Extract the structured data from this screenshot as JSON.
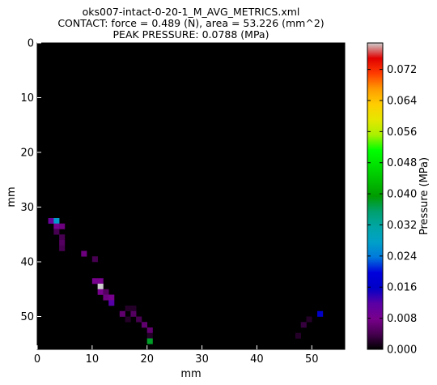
{
  "chart_data": {
    "type": "heatmap",
    "title_lines": [
      "oks007-intact-0-20-1_M_AVG_METRICS.xml",
      "CONTACT: force = 0.489 (N), area = 53.226 (mm^2)",
      "PEAK PRESSURE: 0.0788 (MPa)"
    ],
    "xlabel": "mm",
    "ylabel": "mm",
    "colorbar_label": "Pressure (MPa)",
    "xlim": [
      0,
      56
    ],
    "ylim": [
      56,
      0
    ],
    "xticks": [
      0,
      10,
      20,
      30,
      40,
      50
    ],
    "yticks": [
      0,
      10,
      20,
      30,
      40,
      50
    ],
    "cell_size_mm": 1,
    "colorbar": {
      "vmin": 0.0,
      "vmax": 0.0788,
      "ticks": [
        "0.000",
        "0.008",
        "0.016",
        "0.024",
        "0.032",
        "0.040",
        "0.048",
        "0.056",
        "0.064",
        "0.072"
      ],
      "colormap": "nipy_spectral"
    },
    "background_color": "#000000",
    "cells": [
      {
        "x": 2,
        "y": 32,
        "value": 0.01
      },
      {
        "x": 3,
        "y": 32,
        "value": 0.027
      },
      {
        "x": 3,
        "y": 33,
        "value": 0.008
      },
      {
        "x": 4,
        "y": 33,
        "value": 0.007
      },
      {
        "x": 3,
        "y": 34,
        "value": 0.004
      },
      {
        "x": 4,
        "y": 35,
        "value": 0.004
      },
      {
        "x": 4,
        "y": 36,
        "value": 0.005
      },
      {
        "x": 4,
        "y": 37,
        "value": 0.004
      },
      {
        "x": 8,
        "y": 38,
        "value": 0.007
      },
      {
        "x": 10,
        "y": 39,
        "value": 0.004
      },
      {
        "x": 10,
        "y": 43,
        "value": 0.008
      },
      {
        "x": 11,
        "y": 43,
        "value": 0.008
      },
      {
        "x": 11,
        "y": 44,
        "value": 0.0788
      },
      {
        "x": 11,
        "y": 45,
        "value": 0.008
      },
      {
        "x": 12,
        "y": 45,
        "value": 0.005
      },
      {
        "x": 12,
        "y": 46,
        "value": 0.007
      },
      {
        "x": 13,
        "y": 46,
        "value": 0.008
      },
      {
        "x": 13,
        "y": 47,
        "value": 0.012
      },
      {
        "x": 16,
        "y": 48,
        "value": 0.002
      },
      {
        "x": 17,
        "y": 48,
        "value": 0.002
      },
      {
        "x": 15,
        "y": 49,
        "value": 0.006
      },
      {
        "x": 17,
        "y": 49,
        "value": 0.005
      },
      {
        "x": 16,
        "y": 50,
        "value": 0.002
      },
      {
        "x": 18,
        "y": 50,
        "value": 0.004
      },
      {
        "x": 19,
        "y": 51,
        "value": 0.006
      },
      {
        "x": 20,
        "y": 52,
        "value": 0.006
      },
      {
        "x": 20,
        "y": 53,
        "value": 0.002
      },
      {
        "x": 20,
        "y": 54,
        "value": 0.038
      },
      {
        "x": 51,
        "y": 49,
        "value": 0.016
      },
      {
        "x": 49,
        "y": 50,
        "value": 0.002
      },
      {
        "x": 48,
        "y": 51,
        "value": 0.003
      },
      {
        "x": 47,
        "y": 53,
        "value": 0.002
      }
    ]
  }
}
